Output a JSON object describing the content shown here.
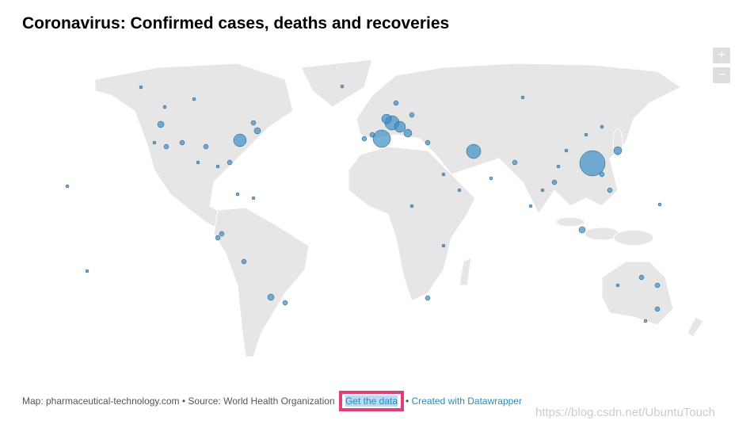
{
  "header": {
    "title": "Coronavirus: Confirmed cases, deaths and recoveries"
  },
  "zoom": {
    "in": "+",
    "out": "−"
  },
  "footer": {
    "credit": "Map: pharmaceutical-technology.com • Source: World Health Organization",
    "get_data": "Get the data",
    "separator": "•",
    "created": "Created with Datawrapper"
  },
  "watermark": "https://blog.csdn.net/UbuntuTouch"
}
